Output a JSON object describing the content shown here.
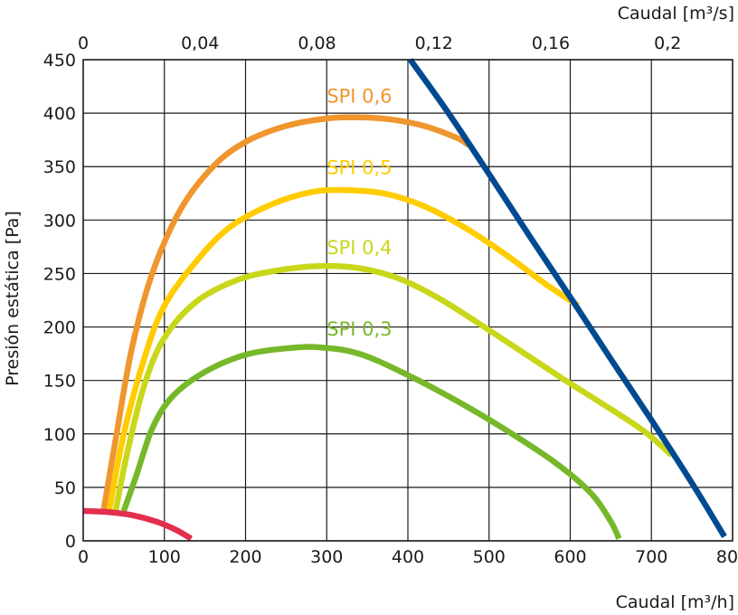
{
  "chart_data": {
    "type": "line",
    "xlabel": "Caudal [m³/h]",
    "x2label": "Caudal [m³/s]",
    "ylabel": "Presión estática [Pa]",
    "xlim": [
      0,
      800
    ],
    "x2lim": [
      0,
      0.2222
    ],
    "ylim": [
      0,
      450
    ],
    "x_ticks": [
      0,
      100,
      200,
      300,
      400,
      500,
      600,
      700,
      800
    ],
    "x_tick_labels": [
      "0",
      "100",
      "200",
      "300",
      "400",
      "500",
      "600",
      "700",
      "800"
    ],
    "x2_ticks": [
      0,
      0.04,
      0.08,
      0.12,
      0.16,
      0.2
    ],
    "x2_tick_labels": [
      "0",
      "0,04",
      "0,08",
      "0,12",
      "0,16",
      "0,2"
    ],
    "y_ticks": [
      0,
      50,
      100,
      150,
      200,
      250,
      300,
      350,
      400,
      450
    ],
    "y_tick_labels": [
      "0",
      "50",
      "100",
      "150",
      "200",
      "250",
      "300",
      "350",
      "400",
      "450"
    ],
    "grid": true,
    "series": [
      {
        "name": "SPI 0,6",
        "color": "#f0962e",
        "label_at": [
          300,
          410
        ],
        "points": [
          [
            25,
            28
          ],
          [
            40,
            95
          ],
          [
            60,
            180
          ],
          [
            85,
            250
          ],
          [
            120,
            310
          ],
          [
            160,
            350
          ],
          [
            200,
            373
          ],
          [
            250,
            388
          ],
          [
            300,
            395
          ],
          [
            340,
            396
          ],
          [
            380,
            394
          ],
          [
            420,
            388
          ],
          [
            460,
            377
          ],
          [
            475,
            370
          ]
        ]
      },
      {
        "name": "SPI 0,5",
        "color": "#ffcc00",
        "label_at": [
          300,
          343
        ],
        "points": [
          [
            32,
            28
          ],
          [
            50,
            100
          ],
          [
            75,
            170
          ],
          [
            100,
            220
          ],
          [
            140,
            262
          ],
          [
            180,
            293
          ],
          [
            230,
            314
          ],
          [
            280,
            326
          ],
          [
            320,
            328
          ],
          [
            370,
            325
          ],
          [
            420,
            313
          ],
          [
            470,
            293
          ],
          [
            520,
            268
          ],
          [
            570,
            240
          ],
          [
            610,
            220
          ]
        ]
      },
      {
        "name": "SPI 0,4",
        "color": "#c9d71a",
        "label_at": [
          300,
          268
        ],
        "points": [
          [
            40,
            28
          ],
          [
            55,
            85
          ],
          [
            75,
            145
          ],
          [
            100,
            190
          ],
          [
            140,
            224
          ],
          [
            190,
            244
          ],
          [
            240,
            253
          ],
          [
            290,
            257
          ],
          [
            340,
            255
          ],
          [
            390,
            245
          ],
          [
            440,
            226
          ],
          [
            490,
            202
          ],
          [
            540,
            177
          ],
          [
            590,
            152
          ],
          [
            640,
            128
          ],
          [
            690,
            103
          ],
          [
            725,
            80
          ]
        ]
      },
      {
        "name": "SPI 0,3",
        "color": "#76b82a",
        "label_at": [
          300,
          192
        ],
        "points": [
          [
            50,
            28
          ],
          [
            65,
            60
          ],
          [
            85,
            105
          ],
          [
            110,
            135
          ],
          [
            150,
            158
          ],
          [
            200,
            174
          ],
          [
            250,
            180
          ],
          [
            290,
            181
          ],
          [
            340,
            175
          ],
          [
            400,
            155
          ],
          [
            460,
            131
          ],
          [
            520,
            104
          ],
          [
            580,
            74
          ],
          [
            625,
            45
          ],
          [
            650,
            18
          ],
          [
            660,
            2
          ]
        ]
      },
      {
        "name": "",
        "color": "#e32f4e",
        "points": [
          [
            0,
            28
          ],
          [
            30,
            27
          ],
          [
            60,
            24
          ],
          [
            90,
            18
          ],
          [
            115,
            10
          ],
          [
            133,
            2
          ]
        ]
      },
      {
        "name": "",
        "color": "#004a90",
        "points": [
          [
            403,
            450
          ],
          [
            450,
            400
          ],
          [
            500,
            343
          ],
          [
            550,
            285
          ],
          [
            600,
            228
          ],
          [
            650,
            170
          ],
          [
            700,
            113
          ],
          [
            750,
            54
          ],
          [
            790,
            4
          ]
        ]
      }
    ]
  }
}
